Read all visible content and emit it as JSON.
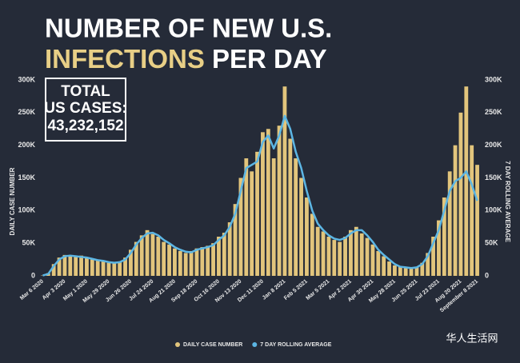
{
  "chart_data": {
    "type": "bar_line",
    "title_line1": "NUMBER OF NEW U.S.",
    "title_highlight": "INFECTIONS",
    "title_rest": "PER DAY",
    "total_label_1": "TOTAL",
    "total_label_2": "US CASES:",
    "total_value": "43,232,152",
    "y_label": "DAILY CASE NUMBER",
    "y2_label": "7 DAY ROLLING AVERAGE",
    "watermark": "华人生活网",
    "categories": [
      "Mar 6 2020",
      null,
      null,
      null,
      "Apr 3 2020",
      null,
      null,
      null,
      "May 1 2020",
      null,
      null,
      null,
      "May 29 2020",
      null,
      null,
      null,
      "Jun 26 2020",
      null,
      null,
      null,
      "Jul 24 2020",
      null,
      null,
      null,
      "Aug 21 2020",
      null,
      null,
      null,
      "Sep 18 2020",
      null,
      null,
      null,
      "Oct 16 2020",
      null,
      null,
      null,
      "Nov 13 2020",
      null,
      null,
      null,
      "Dec 11 2020",
      null,
      null,
      null,
      "Jan 8 2021",
      null,
      null,
      null,
      "Feb 5 2021",
      null,
      null,
      null,
      "Mar 5 2021",
      null,
      null,
      null,
      "Apr 2 2021",
      null,
      null,
      null,
      "Apr 30 2021",
      null,
      null,
      null,
      "May 28 2021",
      null,
      null,
      null,
      "Jun 25 2021",
      null,
      null,
      null,
      "Jul 23 2021",
      null,
      null,
      null,
      "Aug 20 2021",
      null,
      null,
      "September 8 2021"
    ],
    "series": [
      {
        "name": "DAILY CASE NUMBER",
        "color": "#e2c57c",
        "values": [
          500,
          4000,
          18000,
          28000,
          32000,
          30000,
          29000,
          31000,
          27000,
          25000,
          24000,
          22000,
          20000,
          21000,
          22000,
          28000,
          40000,
          52000,
          62000,
          70000,
          64000,
          60000,
          52000,
          48000,
          42000,
          38000,
          35000,
          38000,
          42000,
          44000,
          46000,
          50000,
          60000,
          66000,
          82000,
          110000,
          150000,
          180000,
          160000,
          190000,
          220000,
          225000,
          180000,
          230000,
          290000,
          210000,
          180000,
          150000,
          120000,
          95000,
          75000,
          68000,
          60000,
          55000,
          52000,
          60000,
          70000,
          75000,
          65000,
          58000,
          48000,
          38000,
          30000,
          22000,
          16000,
          14000,
          12000,
          11000,
          14000,
          20000,
          35000,
          60000,
          85000,
          120000,
          160000,
          200000,
          250000,
          290000,
          200000,
          170000
        ]
      },
      {
        "name": "7 DAY ROLLING AVERAGE",
        "color": "#5cb6e4",
        "axis": "y2",
        "values": [
          500,
          3000,
          15000,
          25000,
          30000,
          31000,
          30000,
          29000,
          28000,
          26000,
          24000,
          23000,
          21000,
          20000,
          21000,
          25000,
          35000,
          48000,
          58000,
          65000,
          66000,
          62000,
          55000,
          50000,
          44000,
          40000,
          37000,
          36000,
          40000,
          42000,
          44000,
          47000,
          55000,
          62000,
          75000,
          95000,
          130000,
          165000,
          170000,
          175000,
          205000,
          215000,
          195000,
          215000,
          245000,
          225000,
          190000,
          165000,
          130000,
          100000,
          80000,
          70000,
          62000,
          57000,
          55000,
          58000,
          65000,
          70000,
          70000,
          62000,
          52000,
          40000,
          32000,
          25000,
          18000,
          14000,
          13000,
          12000,
          13000,
          18000,
          30000,
          50000,
          70000,
          100000,
          130000,
          145000,
          150000,
          160000,
          140000,
          115000
        ]
      }
    ],
    "ylim": [
      0,
      300000
    ],
    "yticks": [
      0,
      {
        "value": 50000,
        "label": "50K"
      },
      {
        "value": 100000,
        "label": "100K"
      },
      {
        "value": 150000,
        "label": "150K"
      },
      {
        "value": 200000,
        "label": "200K"
      },
      {
        "value": 250000,
        "label": "250K"
      },
      {
        "value": 300000,
        "label": "300K"
      }
    ],
    "y2lim": [
      0,
      300000
    ],
    "y2ticks": [
      0,
      {
        "value": 50000,
        "label": "50K"
      },
      {
        "value": 100000,
        "label": "100K"
      },
      {
        "value": 150000,
        "label": "150K"
      },
      {
        "value": 200000,
        "label": "200K"
      },
      {
        "value": 250000,
        "label": "250K"
      },
      {
        "value": 300000,
        "label": "300K"
      }
    ]
  }
}
